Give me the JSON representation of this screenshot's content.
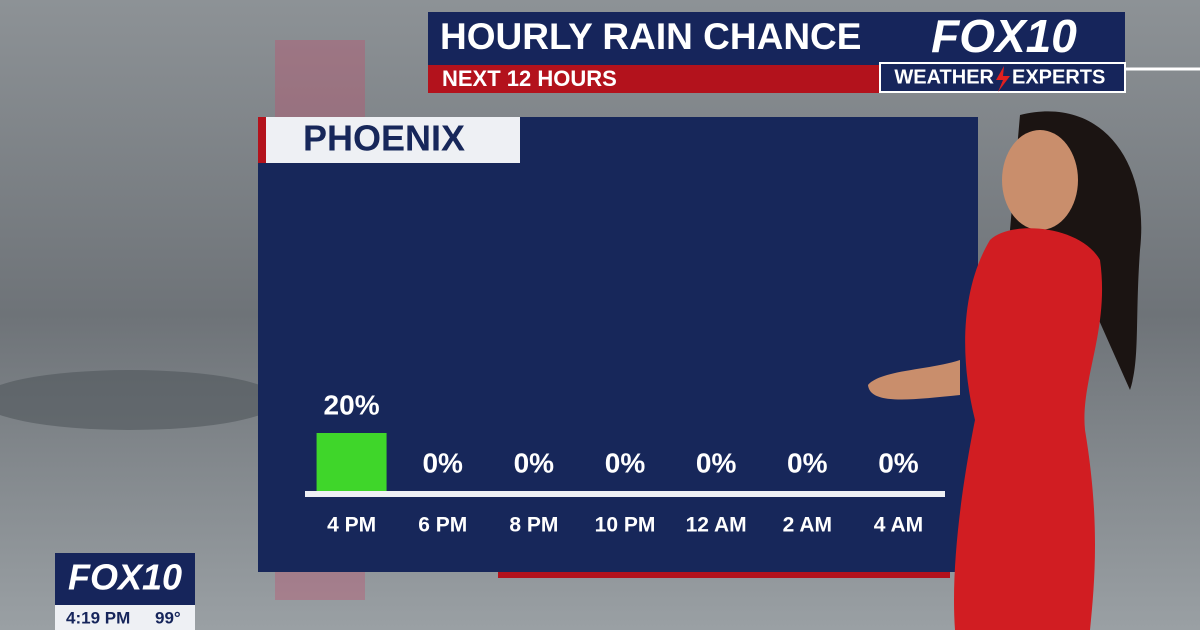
{
  "chart_data": {
    "type": "bar",
    "title": "HOURLY RAIN CHANCE",
    "subtitle": "NEXT 12 HOURS",
    "location": "PHOENIX",
    "categories": [
      "4 PM",
      "6 PM",
      "8 PM",
      "10 PM",
      "12 AM",
      "2 AM",
      "4 AM"
    ],
    "values": [
      20,
      0,
      0,
      0,
      0,
      0,
      0
    ],
    "value_labels": [
      "20%",
      "0%",
      "0%",
      "0%",
      "0%",
      "0%",
      "0%"
    ],
    "color": "#3fd62a"
  },
  "branding": {
    "logo": "FOX10",
    "tag_left": "WEATHER",
    "tag_right": "EXPERTS",
    "bug_logo": "FOX10",
    "time": "4:19 PM",
    "temperature": "99°"
  }
}
